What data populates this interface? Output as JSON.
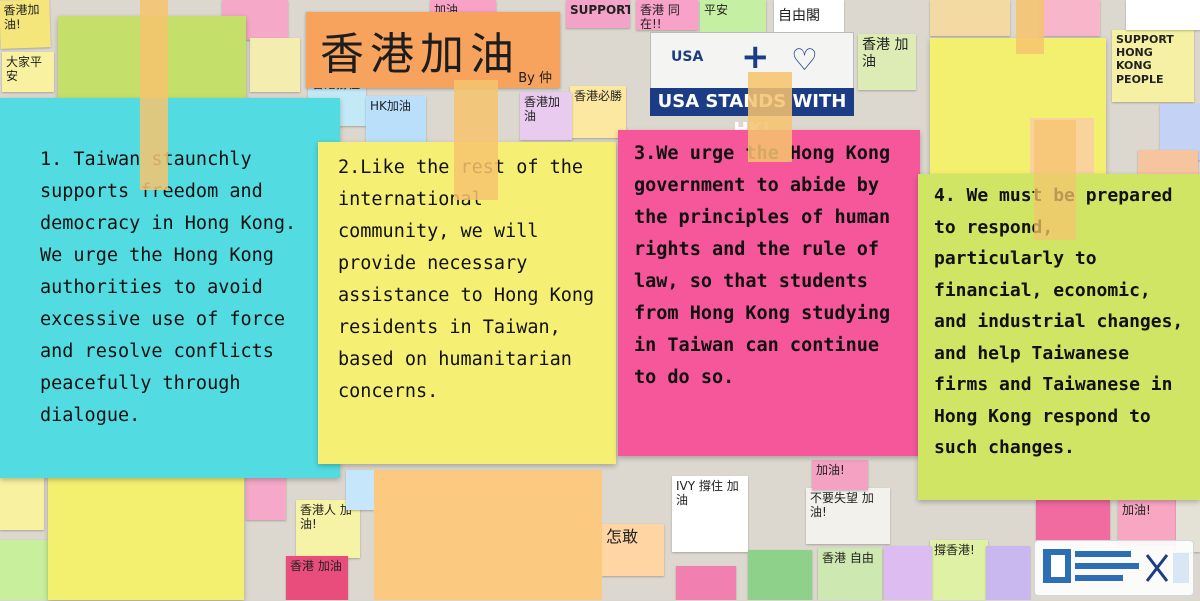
{
  "background": {
    "notes": [
      {
        "text": "香港加油!",
        "color": "#f4e67b"
      },
      {
        "text": "大家平安",
        "color": "#f7f1a0"
      },
      {
        "text": "加油",
        "color": "#f7a2c6"
      },
      {
        "text": "SUPPORT",
        "color": "#f4a3c8"
      },
      {
        "text": "香港 同在!!",
        "color": "#f7a2c6"
      },
      {
        "text": "平安",
        "color": "#c5f0a4"
      },
      {
        "text": "自由閣",
        "color": "#ffffff"
      },
      {
        "text": "香港 加油",
        "color": "#ddecb5"
      },
      {
        "text": "香港撐住",
        "color": "#c3e9f6"
      },
      {
        "text": "HK加油",
        "color": "#b9dffb"
      },
      {
        "text": "香港必勝",
        "color": "#fce8a0"
      },
      {
        "text": "SUPPORT HONG KONG PEOPLE",
        "color": "#f5f0a3"
      },
      {
        "text": "香港加油",
        "color": "#e9cbf0"
      },
      {
        "text": "加油!",
        "color": "#f8a7c3"
      },
      {
        "text": "香港人 加油!",
        "color": "#f7f3a6"
      },
      {
        "text": "香港 加油",
        "color": "#e94d7b"
      },
      {
        "text": "IVY 撐住 加油",
        "color": "#ffffff"
      },
      {
        "text": "不要失望 加油!",
        "color": "#f3f1ec"
      },
      {
        "text": "怎敢",
        "color": "#ffd6a3"
      },
      {
        "text": "香港 自由",
        "color": "#cde8b0"
      },
      {
        "text": "加油!",
        "color": "#f5a1c2"
      },
      {
        "text": "撐香港!",
        "color": "#dff1a4"
      }
    ],
    "big_sign": {
      "text": "香港加油",
      "tag": "By 仲"
    },
    "usa_sign": {
      "left": "USA",
      "plus": "+",
      "banner": "USA STANDS WITH HK!"
    }
  },
  "notes": [
    {
      "color": "#52dbe1",
      "text": "1. Taiwan staunchly supports freedom and democracy in Hong Kong. We urge the Hong Kong authorities to avoid excessive use of force and resolve conflicts peacefully through dialogue."
    },
    {
      "color": "#f5f073",
      "text": "2.Like the rest of the international community, we will provide necessary assistance to Hong Kong residents in Taiwan, based on humanitarian concerns."
    },
    {
      "color": "#f5579a",
      "text": "3.We urge the Hong Kong government to abide by the principles of human rights and the rule of law, so that students from Hong Kong studying in Taiwan can continue to do so."
    },
    {
      "color": "#cfe563",
      "text": "4.  We must be prepared to respond, particularly to financial, economic, and industrial changes, and help Taiwanese firms and Taiwanese in Hong Kong respond to such changes."
    }
  ],
  "colors": {
    "tape": "#f6c46e",
    "yellow_pad": "#f5f073",
    "green_pad": "#cfe563"
  },
  "logo": {
    "icon": "government-emblem-icon"
  }
}
